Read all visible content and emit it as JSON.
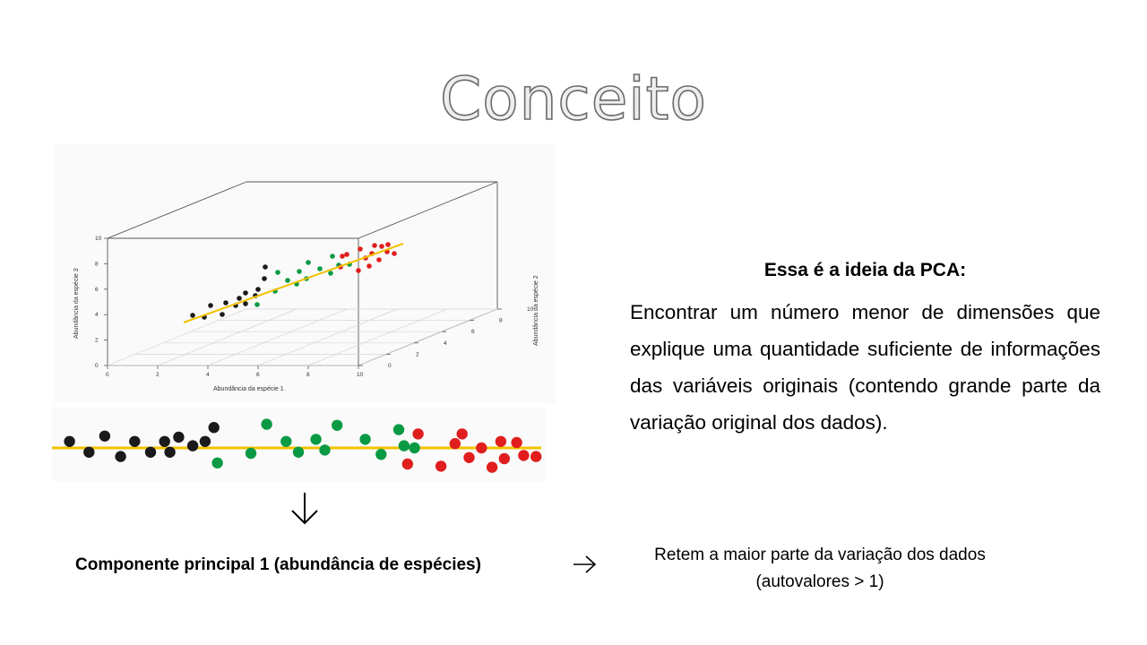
{
  "slide": {
    "title": "Conceito",
    "heading": "Essa é a ideia da PCA:",
    "body": "Encontrar um número menor de dimensões que explique uma quantidade suficiente de informações das variáveis originais (contendo grande parte da variação original dos dados).",
    "component_label": "Componente principal 1 (abundância de espécies)",
    "retem_line1": "Retem a maior parte da variação dos dados",
    "retem_line2": "(autovalores > 1)",
    "arrow_down": "down-arrow-icon",
    "arrow_right": "right-arrow-icon"
  },
  "chart_data": [
    {
      "type": "scatter",
      "title": "",
      "xlabel": "Abundância da espécie 1",
      "ylabel": "Abundância da espécie 2",
      "zlabel": "Abundância da espécie 3",
      "x_ticks": [
        "0",
        "2",
        "4",
        "6",
        "8",
        "10"
      ],
      "y_ticks": [
        "0",
        "2",
        "4",
        "6",
        "8",
        "10"
      ],
      "z_ticks": [
        "0",
        "2",
        "4",
        "6",
        "8",
        "10"
      ],
      "regression_line_color": "#f2c200",
      "series_colors": [
        "#1a1a1a",
        "#0a9a44",
        "#e01e1e"
      ]
    },
    {
      "type": "scatter",
      "title": "",
      "line_y": 0,
      "series": [
        {
          "name": "black",
          "color": "#1a1a1a",
          "x": [
            1,
            2.1,
            3,
            3.9,
            4.7,
            5.6,
            6.4,
            6.7,
            7.2,
            8,
            8.7,
            9.2
          ],
          "y": [
            0.6,
            -0.4,
            1.1,
            -0.8,
            0.6,
            -0.4,
            0.6,
            -0.4,
            1.0,
            0.2,
            0.6,
            1.9
          ]
        },
        {
          "name": "green",
          "color": "#0a9a44",
          "x": [
            9.4,
            11.3,
            12.2,
            13.3,
            14,
            15,
            15.5,
            16.2,
            17.8,
            18.7,
            19.7,
            20,
            20.6
          ],
          "y": [
            -1.4,
            -0.5,
            2.2,
            0.6,
            -0.4,
            0.8,
            -0.2,
            2.1,
            0.8,
            -0.6,
            1.7,
            0.2,
            0
          ]
        },
        {
          "name": "red",
          "color": "#e01e1e",
          "x": [
            20.2,
            20.8,
            22.1,
            22.9,
            23.3,
            23.7,
            24.4,
            25,
            25.5,
            25.7,
            26.4,
            26.8,
            27.5
          ],
          "y": [
            -1.5,
            1.3,
            -1.7,
            0.4,
            1.3,
            -0.9,
            0,
            -1.8,
            0.6,
            -1.0,
            0.5,
            -0.7,
            -0.8
          ]
        }
      ]
    }
  ]
}
